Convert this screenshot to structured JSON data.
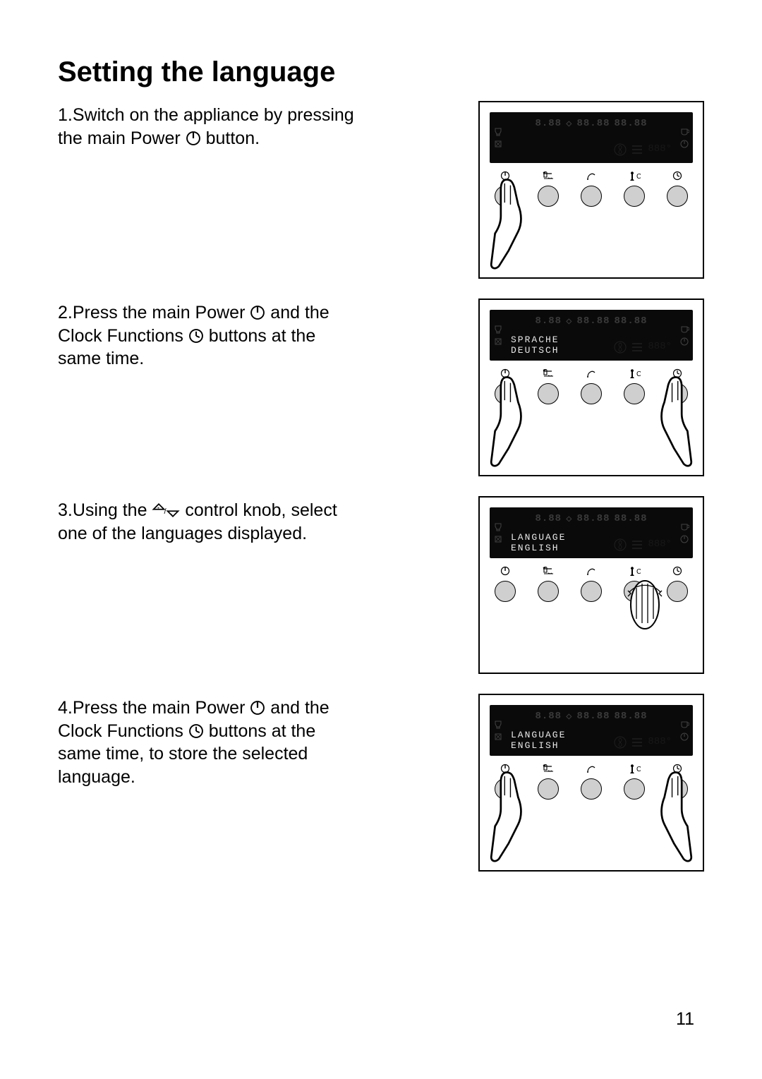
{
  "page_number": "11",
  "heading": "Setting the language",
  "colors": {
    "page_bg": "#ffffff",
    "text": "#000000",
    "lcd_bg": "#0a0a0a",
    "lcd_dim": "#3a3a3a",
    "lcd_bright": "#e8e8e8",
    "button_fill": "#cfcfcf"
  },
  "steps": [
    {
      "n": "1.",
      "pre": "Switch on the appliance by pressing the main Power ",
      "icon": "power",
      "post": " button.",
      "display_line1": "",
      "display_line2": "",
      "hands": [
        "left"
      ],
      "knob_hand": false
    },
    {
      "n": "2.",
      "pre": "Press the main Power ",
      "icon": "power",
      "mid": " and the Clock Functions  ",
      "icon2": "clock",
      "post": " buttons at the same time.",
      "display_line1": "SPRACHE",
      "display_line2": "DEUTSCH",
      "hands": [
        "left",
        "right"
      ],
      "knob_hand": false
    },
    {
      "n": "3.",
      "pre": "Using the ",
      "icon": "updown",
      "post": " control knob, select one of the languages displayed.",
      "display_line1": "LANGUAGE",
      "display_line2": "ENGLISH",
      "hands": [],
      "knob_hand": true
    },
    {
      "n": "4.",
      "pre": "Press the main Power ",
      "icon": "power",
      "mid": " and the Clock Functions ",
      "icon2": "clock",
      "post": " buttons at the same time, to store the selected language.",
      "display_line1": "LANGUAGE",
      "display_line2": "ENGLISH",
      "hands": [
        "left",
        "right"
      ],
      "knob_hand": false
    }
  ],
  "button_labels": [
    "power",
    "options",
    "probe",
    "tempC",
    "clock"
  ],
  "button_label_text": {
    "tempC": "C"
  }
}
